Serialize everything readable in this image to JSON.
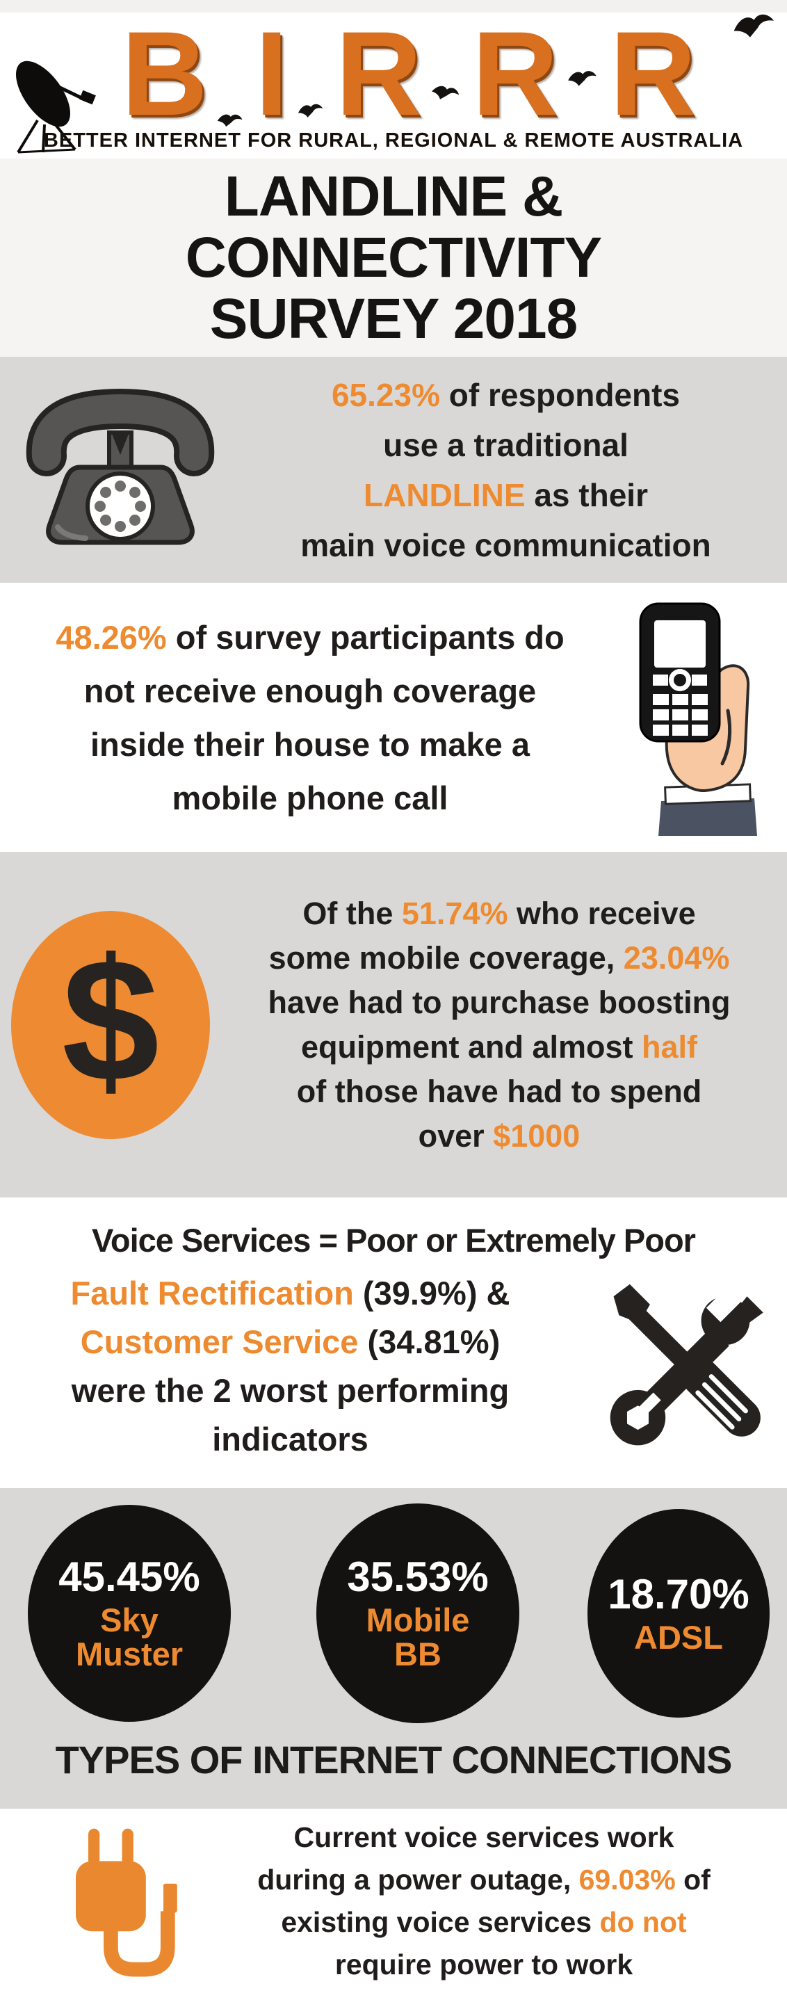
{
  "colors": {
    "accent": "#ee8a2f",
    "ink": "#1f1c1b",
    "white": "#ffffff"
  },
  "logo": {
    "letters": [
      "B",
      "I",
      "R",
      "R",
      "R"
    ],
    "tagline": "BETTER INTERNET FOR RURAL, REGIONAL & REMOTE AUSTRALIA"
  },
  "title": {
    "lines": [
      "LANDLINE &",
      "CONNECTIVITY",
      "SURVEY 2018"
    ]
  },
  "sections": {
    "landline": {
      "lines": [
        [
          {
            "t": "65.23%",
            "c": "accent"
          },
          {
            "t": " of respondents"
          }
        ],
        [
          {
            "t": "use a traditional"
          }
        ],
        [
          {
            "t": "LANDLINE",
            "c": "accent"
          },
          {
            "t": " as their"
          }
        ],
        [
          {
            "t": "main voice communication"
          }
        ]
      ]
    },
    "coverage": {
      "lines": [
        [
          {
            "t": "48.26%",
            "c": "accent"
          },
          {
            "t": " of survey participants do"
          }
        ],
        [
          {
            "t": "not receive enough coverage"
          }
        ],
        [
          {
            "t": "inside their house to make a"
          }
        ],
        [
          {
            "t": "mobile phone call"
          }
        ]
      ]
    },
    "boosting": {
      "symbol": "$",
      "lines": [
        [
          {
            "t": "Of the "
          },
          {
            "t": "51.74%",
            "c": "accent"
          },
          {
            "t": " who receive"
          }
        ],
        [
          {
            "t": "some mobile coverage, "
          },
          {
            "t": "23.04%",
            "c": "accent"
          }
        ],
        [
          {
            "t": "have had to purchase boosting"
          }
        ],
        [
          {
            "t": "equipment and almost "
          },
          {
            "t": "half",
            "c": "accent"
          }
        ],
        [
          {
            "t": "of those have had to spend"
          }
        ],
        [
          {
            "t": "over "
          },
          {
            "t": "$1000",
            "c": "accent"
          }
        ]
      ]
    },
    "voice": {
      "heading": "Voice Services = Poor or Extremely Poor",
      "lines": [
        [
          {
            "t": "Fault Rectification",
            "c": "accent"
          },
          {
            "t": " (39.9%) &"
          }
        ],
        [
          {
            "t": "Customer Service",
            "c": "accent"
          },
          {
            "t": " (34.81%)"
          }
        ],
        [
          {
            "t": "were the 2 worst performing"
          }
        ],
        [
          {
            "t": "indicators"
          }
        ]
      ]
    },
    "connections": {
      "heading": "TYPES OF INTERNET CONNECTIONS",
      "stats": [
        {
          "pct": "45.45%",
          "label_lines": [
            "Sky",
            "Muster"
          ]
        },
        {
          "pct": "35.53%",
          "label_lines": [
            "Mobile",
            "BB"
          ]
        },
        {
          "pct": "18.70%",
          "label_lines": [
            "ADSL"
          ]
        }
      ]
    },
    "power": {
      "lines": [
        [
          {
            "t": "Current voice services work"
          }
        ],
        [
          {
            "t": "during a power outage, "
          },
          {
            "t": "69.03%",
            "c": "accent"
          },
          {
            "t": " of"
          }
        ],
        [
          {
            "t": "existing voice services "
          },
          {
            "t": "do not",
            "c": "accent"
          }
        ],
        [
          {
            "t": "require power to work"
          }
        ]
      ]
    }
  }
}
